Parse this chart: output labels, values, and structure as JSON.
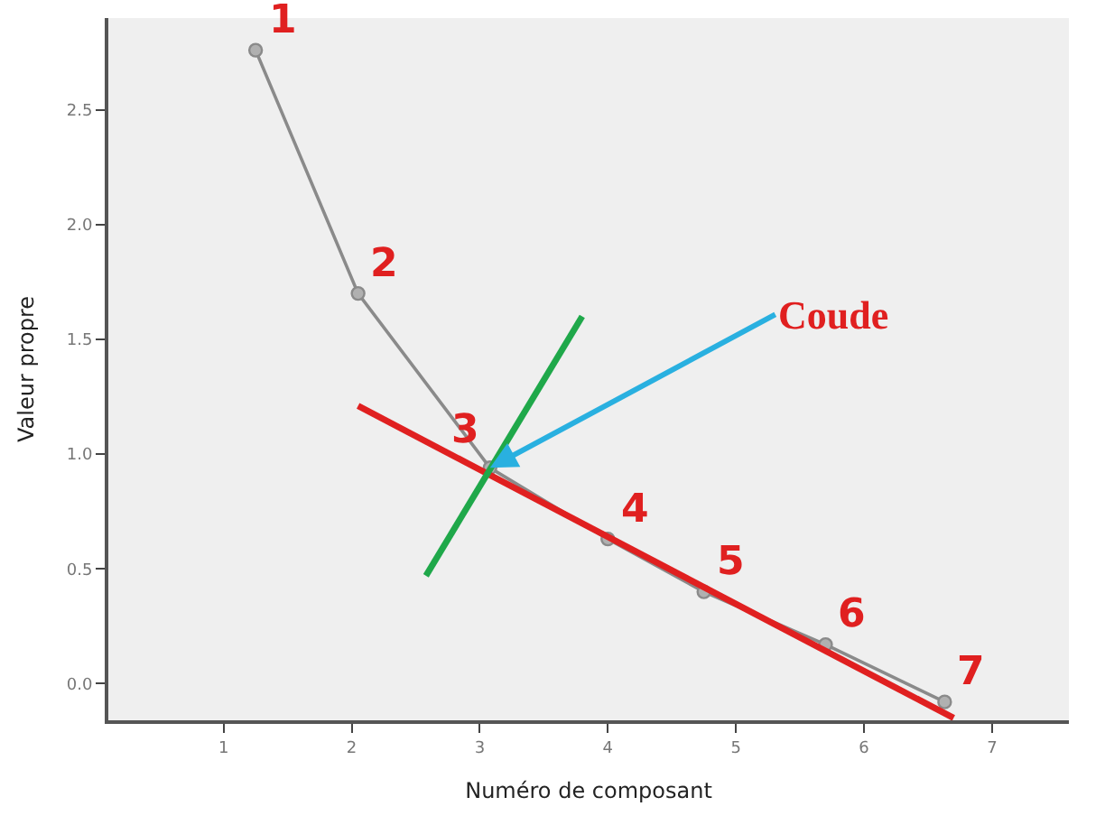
{
  "chart_data": {
    "type": "line",
    "xlabel": "Numéro de composant",
    "ylabel": "Valeur propre",
    "xlim": [
      0.1,
      7.6
    ],
    "ylim": [
      -0.16,
      2.9
    ],
    "xticks": [
      1,
      2,
      3,
      4,
      5,
      6,
      7
    ],
    "yticks": [
      {
        "value": 0,
        "label": "0.0"
      },
      {
        "value": 0.5,
        "label": "0.5"
      },
      {
        "value": 1,
        "label": "1.0"
      },
      {
        "value": 1.5,
        "label": "1.5"
      },
      {
        "value": 2,
        "label": "2.0"
      },
      {
        "value": 2.5,
        "label": "2.5"
      }
    ],
    "grid": false,
    "marker": "circle",
    "line_style": "solid",
    "series": [
      {
        "color": "#8a8a8a",
        "x": [
          1.25,
          2.05,
          3.08,
          4.0,
          4.75,
          5.7,
          6.63
        ],
        "values": [
          2.76,
          1.7,
          0.94,
          0.63,
          0.4,
          0.17,
          -0.08
        ]
      },
      {
        "type": "line",
        "marker": "none",
        "color": "#e02020",
        "x": [
          2.05,
          6.7
        ],
        "values": [
          1.21,
          -0.15
        ]
      },
      {
        "type": "line",
        "marker": "none",
        "color": "#1fa84a",
        "x": [
          2.58,
          3.8
        ],
        "values": [
          0.47,
          1.6
        ]
      }
    ],
    "annotations": [
      {
        "text": "Coude",
        "x": 3.08,
        "y": 0.94
      },
      {
        "text": "1",
        "x": 1.25,
        "y": 2.76
      },
      {
        "text": "2",
        "x": 2.05,
        "y": 1.7
      },
      {
        "text": "3",
        "x": 3.08,
        "y": 0.94
      },
      {
        "text": "4",
        "x": 4.0,
        "y": 0.63
      },
      {
        "text": "5",
        "x": 4.75,
        "y": 0.4
      },
      {
        "text": "6",
        "x": 5.7,
        "y": 0.17
      },
      {
        "text": "7",
        "x": 6.63,
        "y": -0.08
      }
    ]
  }
}
